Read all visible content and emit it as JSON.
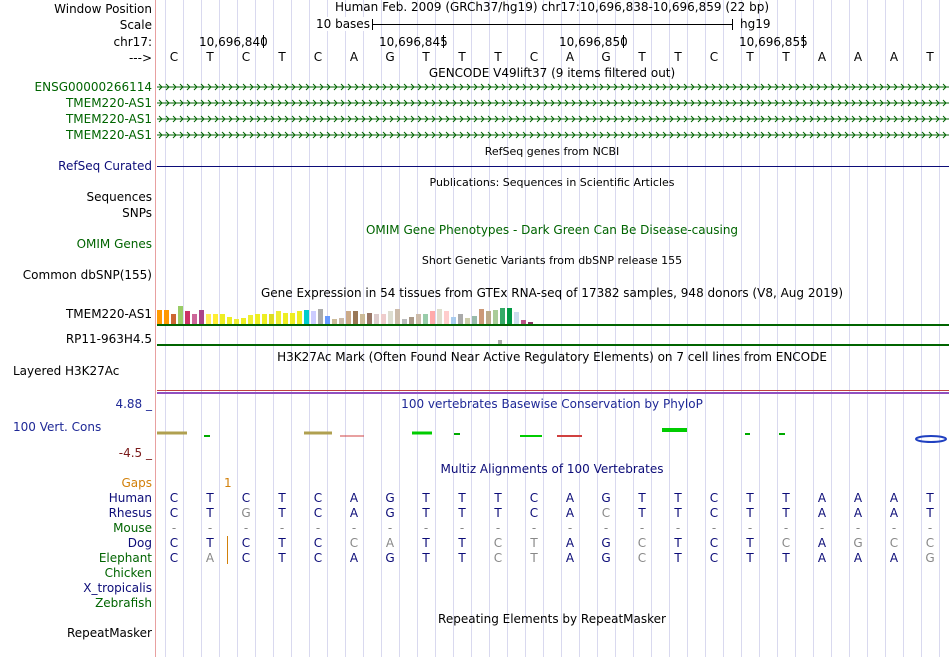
{
  "colors": {
    "green": "#006400",
    "navy": "#0c0c78",
    "gaps": "#d2800a",
    "conservation": "#1e2896",
    "grey": "#888888",
    "bar": "#008000"
  },
  "header": {
    "window_position_label": "Window Position",
    "scale_label": "Scale",
    "chrom_label": "chr17:",
    "strand_label": "--->",
    "assembly_position": "Human Feb. 2009 (GRCh37/hg19)   chr17:10,696,838-10,696,859 (22 bp)",
    "scale_text": "10 bases",
    "scale_assembly": "hg19",
    "coords": [
      "10,696,840",
      "10,696,845",
      "10,696,850",
      "10,696,855"
    ]
  },
  "ref_bases": [
    "C",
    "T",
    "C",
    "T",
    "C",
    "A",
    "G",
    "T",
    "T",
    "T",
    "C",
    "A",
    "G",
    "T",
    "T",
    "C",
    "T",
    "T",
    "A",
    "A",
    "A",
    "T"
  ],
  "gencode": {
    "title": "GENCODE V49lift37 (9 items filtered out)",
    "tracks": [
      "ENSG00000266114",
      "TMEM220-AS1",
      "TMEM220-AS1",
      "TMEM220-AS1"
    ]
  },
  "refseq": {
    "label": "RefSeq Curated",
    "caption": "RefSeq genes from NCBI"
  },
  "publications": {
    "label_line1": "Sequences",
    "label_line2": "SNPs",
    "caption": "Publications: Sequences in Scientific Articles"
  },
  "omim": {
    "label": "OMIM Genes",
    "caption": "OMIM Gene Phenotypes - Dark Green Can Be Disease-causing"
  },
  "dbsnp": {
    "label": "Common dbSNP(155)",
    "caption": "Short Genetic Variants from dbSNP release 155"
  },
  "gtex": {
    "caption": "Gene Expression in 54 tissues from GTEx RNA-seq of 17382 samples, 948 donors (V8, Aug 2019)",
    "genes": [
      "TMEM220-AS1",
      "RP11-963H4.5"
    ],
    "levels": [
      0.75,
      0.75,
      0.55,
      1.0,
      0.7,
      0.55,
      0.75,
      0.55,
      0.55,
      0.55,
      0.4,
      0.25,
      0.35,
      0.5,
      0.55,
      0.55,
      0.55,
      0.7,
      0.6,
      0.6,
      0.7,
      0.75,
      0.7,
      0.85,
      0.45,
      0.25,
      0.35,
      0.7,
      0.7,
      0.55,
      0.6,
      0.55,
      0.55,
      0.7,
      0.85,
      0.3,
      0.4,
      0.55,
      0.55,
      0.7,
      0.85,
      0.7,
      0.4,
      0.55,
      0.35,
      0.45,
      0.85,
      0.7,
      0.8,
      0.9,
      0.9,
      0.65,
      0.2,
      0.1
    ],
    "colors": [
      "#ff9900",
      "#ff9900",
      "#cc6633",
      "#99cc66",
      "#cc3366",
      "#cc6699",
      "#aa4488",
      "#ffee55",
      "#ffee33",
      "#eeee22",
      "#eeee22",
      "#eeee33",
      "#eeee22",
      "#eeee33",
      "#eeee22",
      "#eeee22",
      "#dddd22",
      "#eeee33",
      "#eeee22",
      "#eeee22",
      "#eeee22",
      "#00cccc",
      "#ccccff",
      "#aaaaaa",
      "#6699ff",
      "#ccbb99",
      "#ccbbaa",
      "#ccaa88",
      "#997755",
      "#ccbb99",
      "#997766",
      "#ddcccc",
      "#eecccc",
      "#ddddd0",
      "#ccbbaa",
      "#bbbbbb",
      "#aa9988",
      "#ccbbaa",
      "#99ccaa",
      "#ffaaaa",
      "#ddddcc",
      "#ffcccc",
      "#aaccee",
      "#aaaaaa",
      "#ccccaa",
      "#99bbaa",
      "#cc9977",
      "#bbaa88",
      "#aacc99",
      "#33aa66",
      "#009944",
      "#ccddee",
      "#bb5588",
      "#883366"
    ]
  },
  "h3k27ac": {
    "label": "Layered H3K27Ac",
    "caption": "H3K27Ac Mark (Often Found Near Active Regulatory Elements) on 7 cell lines from ENCODE"
  },
  "phylop": {
    "label": "100 Vert. Cons",
    "max": "4.88 _",
    "min": "-4.5 _",
    "caption": "100 vertebrates Basewise Conservation by PhyloP"
  },
  "multiz": {
    "caption": "Multiz Alignments of 100 Vertebrates",
    "gaps_label": "Gaps",
    "gaps_value": "1",
    "species": [
      {
        "name": "Human",
        "seq": [
          "C",
          "T",
          "C",
          "T",
          "C",
          "A",
          "G",
          "T",
          "T",
          "T",
          "C",
          "A",
          "G",
          "T",
          "T",
          "C",
          "T",
          "T",
          "A",
          "A",
          "A",
          "T"
        ]
      },
      {
        "name": "Rhesus",
        "seq": [
          "C",
          "T",
          "G",
          "T",
          "C",
          "A",
          "G",
          "T",
          "T",
          "T",
          "C",
          "A",
          "C",
          "T",
          "T",
          "C",
          "T",
          "T",
          "A",
          "A",
          "A",
          "T"
        ]
      },
      {
        "name": "Mouse",
        "seq": [
          "-",
          "-",
          "-",
          "-",
          "-",
          "-",
          "-",
          "-",
          "-",
          "-",
          "-",
          "-",
          "-",
          "-",
          "-",
          "-",
          "-",
          "-",
          "-",
          "-",
          "-",
          "-"
        ]
      },
      {
        "name": "Dog",
        "seq": [
          "C",
          "T",
          "C",
          "T",
          "C",
          "C",
          "A",
          "T",
          "T",
          "C",
          "T",
          "A",
          "G",
          "C",
          "T",
          "C",
          "T",
          "C",
          "A",
          "G",
          "C",
          "C"
        ]
      },
      {
        "name": "Elephant",
        "seq": [
          "C",
          "A",
          "C",
          "T",
          "C",
          "A",
          "G",
          "T",
          "T",
          "C",
          "T",
          "A",
          "G",
          "C",
          "T",
          "C",
          "T",
          "T",
          "A",
          "A",
          "A",
          "G"
        ]
      },
      {
        "name": "Chicken",
        "seq": []
      },
      {
        "name": "X_tropicalis",
        "seq": []
      },
      {
        "name": "Zebrafish",
        "seq": []
      }
    ]
  },
  "repeatmasker": {
    "label": "RepeatMasker",
    "caption": "Repeating Elements by RepeatMasker"
  }
}
